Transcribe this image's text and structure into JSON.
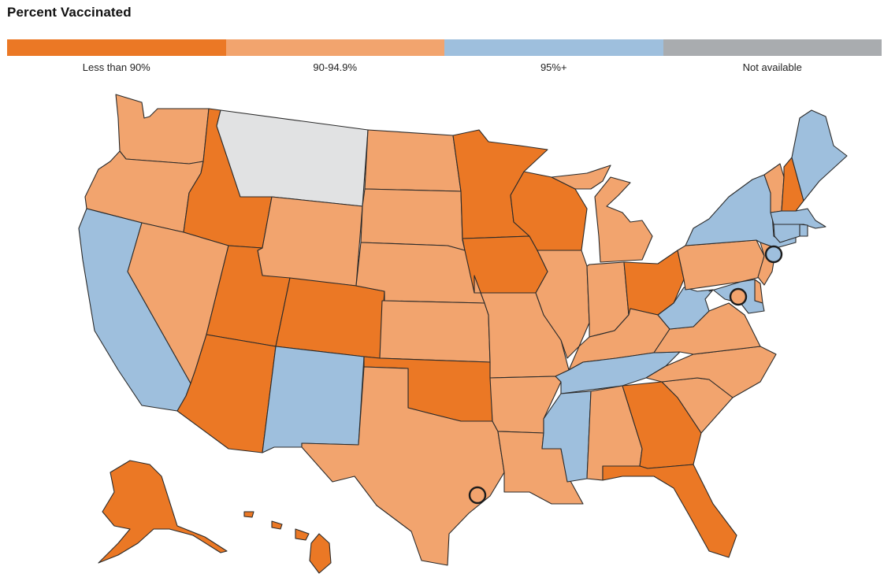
{
  "header": {
    "title": "Percent Vaccinated"
  },
  "legend": [
    {
      "label": "Less than 90%",
      "color": "#eb7825"
    },
    {
      "label": "90-94.9%",
      "color": "#f2a46e"
    },
    {
      "label": "95%+",
      "color": "#9ebfdd"
    },
    {
      "label": "Not available",
      "color": "#a9acaf"
    }
  ],
  "map_colors": {
    "lt90": "#eb7825",
    "p90_949": "#f2a46e",
    "p95": "#9ebfdd",
    "na_fill": "#e1e2e3"
  },
  "regions": [
    {
      "name": "Washington",
      "category": "p90_949"
    },
    {
      "name": "Oregon",
      "category": "p90_949"
    },
    {
      "name": "California",
      "category": "p95"
    },
    {
      "name": "Idaho",
      "category": "lt90"
    },
    {
      "name": "Nevada",
      "category": "p90_949"
    },
    {
      "name": "Montana",
      "category": "na"
    },
    {
      "name": "Wyoming",
      "category": "p90_949"
    },
    {
      "name": "Utah",
      "category": "lt90"
    },
    {
      "name": "Arizona",
      "category": "lt90"
    },
    {
      "name": "Colorado",
      "category": "lt90"
    },
    {
      "name": "New Mexico",
      "category": "p95"
    },
    {
      "name": "North Dakota",
      "category": "p90_949"
    },
    {
      "name": "South Dakota",
      "category": "p90_949"
    },
    {
      "name": "Nebraska",
      "category": "p90_949"
    },
    {
      "name": "Kansas",
      "category": "p90_949"
    },
    {
      "name": "Oklahoma",
      "category": "lt90"
    },
    {
      "name": "Texas",
      "category": "p90_949"
    },
    {
      "name": "Minnesota",
      "category": "lt90"
    },
    {
      "name": "Iowa",
      "category": "lt90"
    },
    {
      "name": "Missouri",
      "category": "p90_949"
    },
    {
      "name": "Arkansas",
      "category": "p90_949"
    },
    {
      "name": "Louisiana",
      "category": "p90_949"
    },
    {
      "name": "Wisconsin",
      "category": "lt90"
    },
    {
      "name": "Illinois",
      "category": "p90_949"
    },
    {
      "name": "Michigan",
      "category": "p90_949"
    },
    {
      "name": "Indiana",
      "category": "p90_949"
    },
    {
      "name": "Ohio",
      "category": "lt90"
    },
    {
      "name": "Kentucky",
      "category": "p90_949"
    },
    {
      "name": "Tennessee",
      "category": "p95"
    },
    {
      "name": "Mississippi",
      "category": "p95"
    },
    {
      "name": "Alabama",
      "category": "p90_949"
    },
    {
      "name": "Georgia",
      "category": "lt90"
    },
    {
      "name": "Florida",
      "category": "lt90"
    },
    {
      "name": "South Carolina",
      "category": "p90_949"
    },
    {
      "name": "North Carolina",
      "category": "p90_949"
    },
    {
      "name": "Virginia",
      "category": "p90_949"
    },
    {
      "name": "West Virginia",
      "category": "p95"
    },
    {
      "name": "Pennsylvania",
      "category": "p90_949"
    },
    {
      "name": "New York",
      "category": "p95"
    },
    {
      "name": "Vermont",
      "category": "p90_949"
    },
    {
      "name": "New Hampshire",
      "category": "lt90"
    },
    {
      "name": "Maine",
      "category": "p95"
    },
    {
      "name": "Massachusetts",
      "category": "p95"
    },
    {
      "name": "Rhode Island",
      "category": "p95"
    },
    {
      "name": "Connecticut",
      "category": "p95"
    },
    {
      "name": "New Jersey",
      "category": "p90_949"
    },
    {
      "name": "Delaware",
      "category": "p90_949"
    },
    {
      "name": "Maryland",
      "category": "p95"
    },
    {
      "name": "Alaska",
      "category": "lt90"
    },
    {
      "name": "Hawaii",
      "category": "lt90"
    }
  ],
  "markers": [
    {
      "name": "New York City",
      "category": "p95"
    },
    {
      "name": "District of Columbia",
      "category": "p90_949"
    },
    {
      "name": "Houston",
      "category": "p90_949"
    }
  ]
}
